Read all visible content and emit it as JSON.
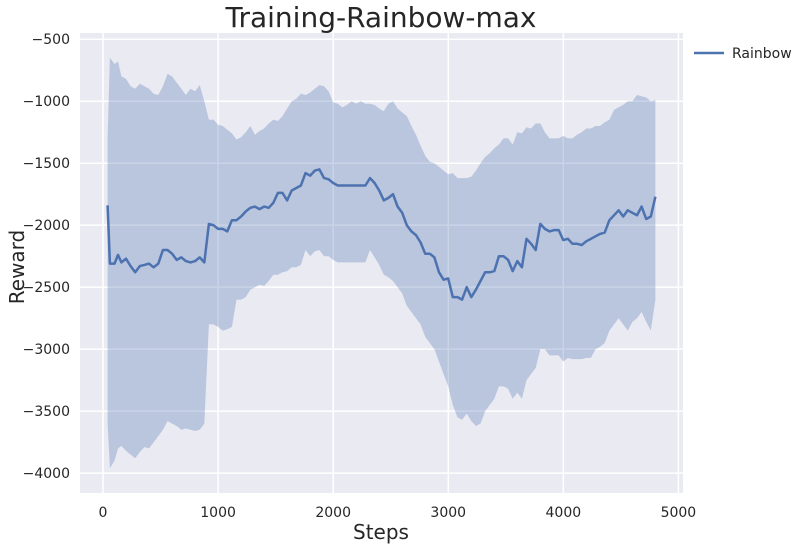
{
  "chart_data": {
    "type": "line",
    "title": "Training-Rainbow-max",
    "xlabel": "Steps",
    "ylabel": "Reward",
    "xlim": [
      -200,
      5040
    ],
    "ylim": [
      -4160,
      -450
    ],
    "xticks": [
      0,
      1000,
      2000,
      3000,
      4000,
      5000
    ],
    "yticks": [
      -500,
      -1000,
      -1500,
      -2000,
      -2500,
      -3000,
      -3500,
      -4000
    ],
    "xtick_labels": [
      "0",
      "1000",
      "2000",
      "3000",
      "4000",
      "5000"
    ],
    "ytick_labels": [
      "−500",
      "−1000",
      "−1500",
      "−2000",
      "−2500",
      "−3000",
      "−3500",
      "−4000"
    ],
    "grid": true,
    "legend_position": "outside-top-right",
    "background_color": "#eaeaf2",
    "series_color": "#4c72b0",
    "series": [
      {
        "name": "Rainbow",
        "x": [
          40,
          60,
          100,
          130,
          160,
          200,
          240,
          280,
          320,
          360,
          400,
          440,
          480,
          520,
          560,
          600,
          640,
          680,
          720,
          760,
          800,
          840,
          880,
          920,
          960,
          1000,
          1040,
          1080,
          1120,
          1160,
          1200,
          1240,
          1280,
          1320,
          1360,
          1400,
          1440,
          1480,
          1520,
          1560,
          1600,
          1640,
          1680,
          1720,
          1760,
          1800,
          1840,
          1880,
          1920,
          1960,
          2000,
          2040,
          2080,
          2120,
          2160,
          2200,
          2240,
          2280,
          2320,
          2360,
          2400,
          2440,
          2480,
          2520,
          2560,
          2600,
          2640,
          2680,
          2720,
          2760,
          2800,
          2840,
          2880,
          2920,
          2960,
          3000,
          3040,
          3080,
          3120,
          3160,
          3200,
          3240,
          3280,
          3320,
          3360,
          3400,
          3440,
          3480,
          3520,
          3560,
          3600,
          3640,
          3680,
          3720,
          3760,
          3800,
          3840,
          3880,
          3920,
          3960,
          4000,
          4040,
          4080,
          4120,
          4160,
          4200,
          4240,
          4280,
          4320,
          4360,
          4400,
          4440,
          4480,
          4520,
          4560,
          4600,
          4640,
          4680,
          4720,
          4760,
          4800
        ],
        "values": [
          -1840,
          -2310,
          -2310,
          -2240,
          -2300,
          -2270,
          -2330,
          -2380,
          -2330,
          -2320,
          -2310,
          -2340,
          -2310,
          -2200,
          -2200,
          -2230,
          -2280,
          -2260,
          -2290,
          -2300,
          -2290,
          -2260,
          -2300,
          -1990,
          -2000,
          -2030,
          -2030,
          -2050,
          -1960,
          -1960,
          -1930,
          -1890,
          -1860,
          -1850,
          -1870,
          -1850,
          -1860,
          -1820,
          -1740,
          -1740,
          -1800,
          -1720,
          -1700,
          -1680,
          -1580,
          -1600,
          -1560,
          -1550,
          -1620,
          -1630,
          -1660,
          -1680,
          -1680,
          -1680,
          -1680,
          -1680,
          -1680,
          -1680,
          -1620,
          -1660,
          -1720,
          -1800,
          -1780,
          -1750,
          -1850,
          -1900,
          -2000,
          -2050,
          -2080,
          -2140,
          -2230,
          -2230,
          -2260,
          -2380,
          -2440,
          -2430,
          -2580,
          -2580,
          -2600,
          -2500,
          -2580,
          -2520,
          -2450,
          -2380,
          -2380,
          -2370,
          -2250,
          -2250,
          -2280,
          -2370,
          -2290,
          -2340,
          -2110,
          -2150,
          -2200,
          -1990,
          -2030,
          -2050,
          -2040,
          -2040,
          -2120,
          -2110,
          -2150,
          -2150,
          -2160,
          -2130,
          -2110,
          -2090,
          -2070,
          -2060,
          -1960,
          -1920,
          -1880,
          -1930,
          -1880,
          -1900,
          -1920,
          -1850,
          -1950,
          -1930,
          -1770
        ],
        "upper": [
          -1300,
          -650,
          -700,
          -680,
          -800,
          -820,
          -880,
          -900,
          -860,
          -880,
          -900,
          -940,
          -950,
          -880,
          -780,
          -800,
          -850,
          -900,
          -950,
          -900,
          -920,
          -870,
          -1000,
          -1150,
          -1150,
          -1190,
          -1200,
          -1230,
          -1260,
          -1310,
          -1290,
          -1250,
          -1200,
          -1270,
          -1240,
          -1220,
          -1180,
          -1150,
          -1160,
          -1120,
          -1060,
          -1000,
          -980,
          -940,
          -950,
          -930,
          -900,
          -870,
          -880,
          -920,
          -1010,
          -1020,
          -1050,
          -1030,
          -1000,
          -1020,
          -1000,
          -1020,
          -1020,
          -1030,
          -1060,
          -1080,
          -1020,
          -1000,
          -1060,
          -1090,
          -1120,
          -1200,
          -1270,
          -1360,
          -1440,
          -1490,
          -1500,
          -1530,
          -1560,
          -1590,
          -1580,
          -1620,
          -1620,
          -1620,
          -1610,
          -1560,
          -1500,
          -1450,
          -1420,
          -1380,
          -1350,
          -1300,
          -1300,
          -1350,
          -1250,
          -1260,
          -1210,
          -1220,
          -1180,
          -1180,
          -1250,
          -1300,
          -1300,
          -1300,
          -1280,
          -1300,
          -1300,
          -1270,
          -1250,
          -1220,
          -1220,
          -1200,
          -1200,
          -1170,
          -1150,
          -1070,
          -1050,
          -1030,
          -1000,
          -1000,
          -950,
          -960,
          -970,
          -1000,
          -990
        ],
        "lower": [
          -3600,
          -3960,
          -3900,
          -3800,
          -3780,
          -3820,
          -3850,
          -3880,
          -3830,
          -3790,
          -3800,
          -3750,
          -3700,
          -3650,
          -3580,
          -3600,
          -3620,
          -3650,
          -3640,
          -3650,
          -3660,
          -3650,
          -3600,
          -2800,
          -2800,
          -2820,
          -2850,
          -2840,
          -2820,
          -2600,
          -2600,
          -2580,
          -2520,
          -2500,
          -2480,
          -2490,
          -2450,
          -2400,
          -2400,
          -2380,
          -2370,
          -2340,
          -2340,
          -2320,
          -2200,
          -2250,
          -2210,
          -2200,
          -2250,
          -2250,
          -2280,
          -2300,
          -2300,
          -2300,
          -2300,
          -2300,
          -2300,
          -2300,
          -2200,
          -2260,
          -2320,
          -2400,
          -2420,
          -2450,
          -2500,
          -2550,
          -2650,
          -2700,
          -2750,
          -2800,
          -2900,
          -2950,
          -3000,
          -3100,
          -3200,
          -3300,
          -3450,
          -3550,
          -3570,
          -3520,
          -3580,
          -3620,
          -3600,
          -3500,
          -3450,
          -3400,
          -3300,
          -3300,
          -3320,
          -3400,
          -3350,
          -3400,
          -3250,
          -3200,
          -3150,
          -3000,
          -3000,
          -3050,
          -3050,
          -3050,
          -3100,
          -3070,
          -3080,
          -3080,
          -3080,
          -3070,
          -3070,
          -3000,
          -2980,
          -2950,
          -2850,
          -2800,
          -2750,
          -2800,
          -2850,
          -2780,
          -2750,
          -2700,
          -2780,
          -2850,
          -2600
        ]
      }
    ]
  }
}
